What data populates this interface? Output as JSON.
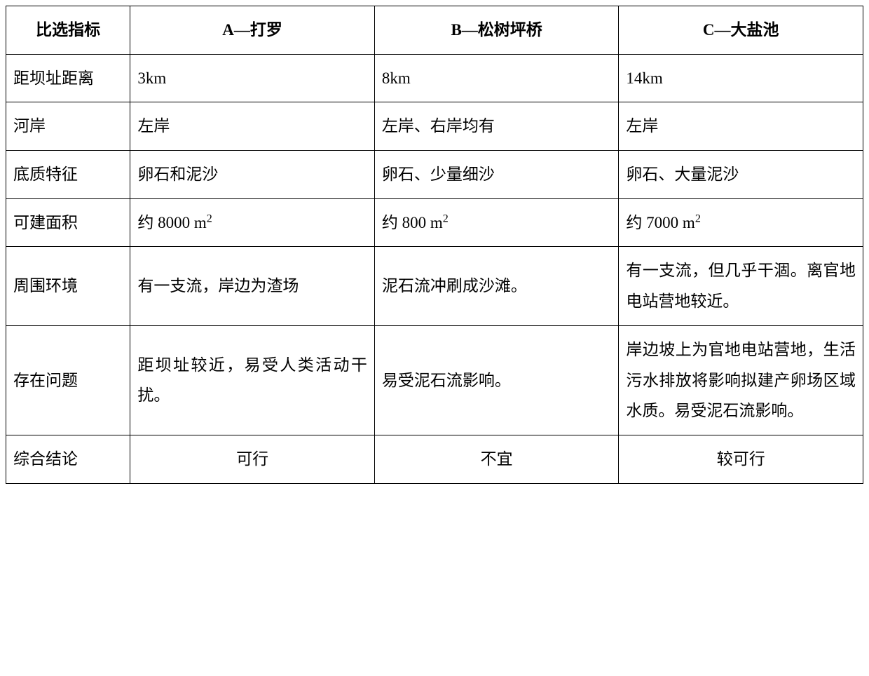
{
  "table": {
    "headers": {
      "indicator": "比选指标",
      "optionA": "A—打罗",
      "optionB": "B—松树坪桥",
      "optionC": "C—大盐池"
    },
    "rows": {
      "distance": {
        "label": "距坝址距离",
        "a": "3km",
        "b": "8km",
        "c": "14km"
      },
      "bank": {
        "label": "河岸",
        "a": "左岸",
        "b": "左岸、右岸均有",
        "c": "左岸"
      },
      "substrate": {
        "label": "底质特征",
        "a": "卵石和泥沙",
        "b": "卵石、少量细沙",
        "c": "卵石、大量泥沙"
      },
      "area": {
        "label": "可建面积",
        "a_prefix": "约 8000 m",
        "a_sup": "2",
        "b_prefix": "约 800 m",
        "b_sup": "2",
        "c_prefix": "约 7000 m",
        "c_sup": "2"
      },
      "environment": {
        "label": "周围环境",
        "a": "有一支流，岸边为渣场",
        "b": "泥石流冲刷成沙滩。",
        "c": "有一支流，但几乎干涸。离官地电站营地较近。"
      },
      "problems": {
        "label": "存在问题",
        "a": "距坝址较近，易受人类活动干扰。",
        "b": "易受泥石流影响。",
        "c": "岸边坡上为官地电站营地，生活污水排放将影响拟建产卵场区域水质。易受泥石流影响。"
      },
      "conclusion": {
        "label": "综合结论",
        "a": "可行",
        "b": "不宜",
        "c": "较可行"
      }
    }
  }
}
